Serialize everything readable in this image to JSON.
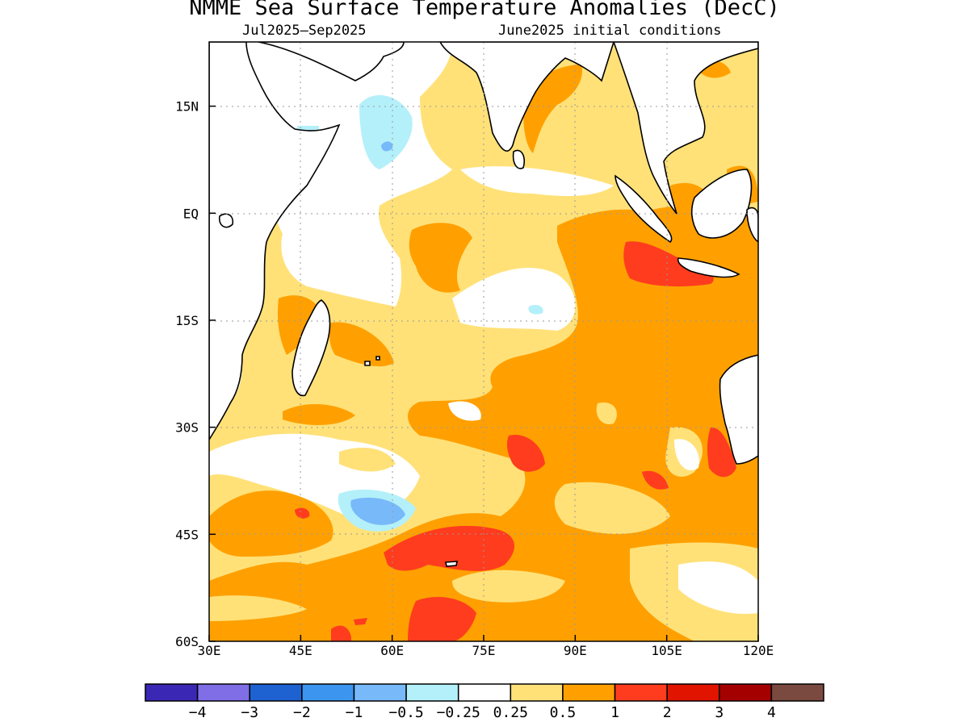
{
  "title": "NMME Sea Surface Temperature Anomalies (DecC)",
  "subtitle_left": "Jul2025—Sep2025",
  "subtitle_right": "June2025 initial conditions",
  "map": {
    "lon_range": [
      30,
      120
    ],
    "lat_range": [
      -60,
      24
    ],
    "lon_ticks": [
      {
        "value": 30,
        "label": "30E"
      },
      {
        "value": 45,
        "label": "45E"
      },
      {
        "value": 60,
        "label": "60E"
      },
      {
        "value": 75,
        "label": "75E"
      },
      {
        "value": 90,
        "label": "90E"
      },
      {
        "value": 105,
        "label": "105E"
      },
      {
        "value": 120,
        "label": "120E"
      }
    ],
    "lat_ticks": [
      {
        "value": 15,
        "label": "15N"
      },
      {
        "value": 0,
        "label": "EQ"
      },
      {
        "value": -15,
        "label": "15S"
      },
      {
        "value": -30,
        "label": "30S"
      },
      {
        "value": -45,
        "label": "45S"
      },
      {
        "value": -60,
        "label": "60S"
      }
    ],
    "grid": "dotted"
  },
  "colorbar": {
    "colors": [
      "#3a28b4",
      "#7f6ee6",
      "#1e62d2",
      "#3c96f0",
      "#78b9fa",
      "#b4f0fa",
      "#ffffff",
      "#ffe178",
      "#ffa000",
      "#ff3c1e",
      "#e11400",
      "#a50000",
      "#7a4a40"
    ],
    "labels": [
      "−4",
      "−3",
      "−2",
      "−1",
      "−0.5",
      "−0.25",
      "0.25",
      "0.5",
      "1",
      "2",
      "3",
      "4"
    ]
  }
}
